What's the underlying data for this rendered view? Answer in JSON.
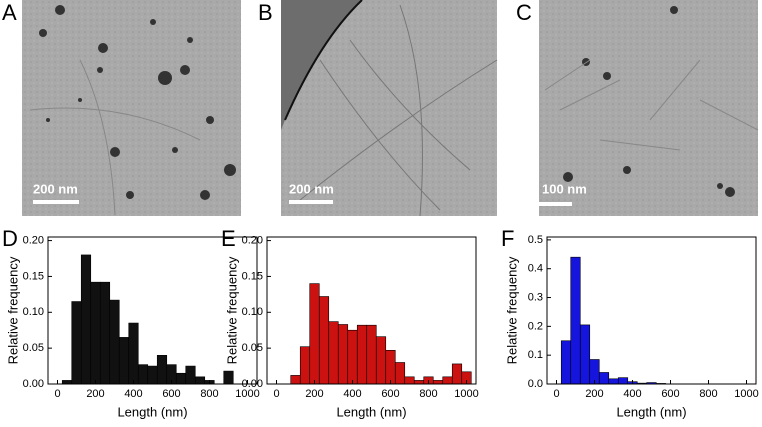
{
  "panels": [
    {
      "label": "A",
      "scale_bar": "200 nm"
    },
    {
      "label": "B",
      "scale_bar": "200 nm"
    },
    {
      "label": "C",
      "scale_bar": "100 nm"
    }
  ],
  "chart_data": [
    {
      "type": "histogram",
      "panel_label": "D",
      "xlabel": "Length (nm)",
      "ylabel": "Relative frequency",
      "color": "#111111",
      "bins": [
        25,
        75,
        125,
        175,
        225,
        275,
        325,
        375,
        425,
        475,
        525,
        575,
        625,
        675,
        725,
        775,
        825,
        875,
        925,
        975
      ],
      "values": [
        0.005,
        0.115,
        0.18,
        0.142,
        0.142,
        0.117,
        0.065,
        0.085,
        0.027,
        0.025,
        0.04,
        0.027,
        0.015,
        0.025,
        0.01,
        0.005,
        0,
        0.018,
        0
      ],
      "xlim": [
        -50,
        1050
      ],
      "ylim": [
        0,
        0.205
      ],
      "xticks": [
        0,
        200,
        400,
        600,
        800,
        1000
      ],
      "yticks": [
        {
          "value": 0,
          "label": "0.00"
        },
        {
          "value": 0.05,
          "label": "0.05"
        },
        {
          "value": 0.1,
          "label": "0.10"
        },
        {
          "value": 0.15,
          "label": "0.15"
        },
        {
          "value": 0.2,
          "label": "0.20"
        }
      ]
    },
    {
      "type": "histogram",
      "panel_label": "E",
      "xlabel": "Length (nm)",
      "ylabel": "Relative frequency",
      "color": "#cc1111",
      "bins": [
        75,
        125,
        175,
        225,
        275,
        325,
        375,
        425,
        475,
        525,
        575,
        625,
        675,
        725,
        775,
        825,
        875,
        925,
        975,
        1025
      ],
      "values": [
        0.012,
        0.052,
        0.14,
        0.122,
        0.087,
        0.083,
        0.075,
        0.082,
        0.082,
        0.066,
        0.047,
        0.03,
        0.01,
        0.005,
        0.01,
        0.005,
        0.01,
        0.028,
        0.017
      ],
      "xlim": [
        -50,
        1050
      ],
      "ylim": [
        0,
        0.205
      ],
      "xticks": [
        0,
        200,
        400,
        600,
        800,
        1000
      ],
      "yticks": [
        {
          "value": 0,
          "label": "0.00"
        },
        {
          "value": 0.05,
          "label": "0.05"
        },
        {
          "value": 0.1,
          "label": "0.10"
        },
        {
          "value": 0.15,
          "label": "0.15"
        },
        {
          "value": 0.2,
          "label": "0.20"
        }
      ]
    },
    {
      "type": "histogram",
      "panel_label": "F",
      "xlabel": "Length (nm)",
      "ylabel": "Relative frequency",
      "color": "#1515dd",
      "bins": [
        25,
        75,
        125,
        175,
        225,
        275,
        325,
        375,
        425,
        475,
        525,
        575
      ],
      "values": [
        0.15,
        0.44,
        0.205,
        0.085,
        0.04,
        0.018,
        0.022,
        0.008,
        0.003,
        0.005,
        0.002
      ],
      "xlim": [
        -50,
        1050
      ],
      "ylim": [
        0,
        0.51
      ],
      "xticks": [
        0,
        200,
        400,
        600,
        800,
        1000
      ],
      "yticks": [
        {
          "value": 0,
          "label": "0.0"
        },
        {
          "value": 0.1,
          "label": "0.1"
        },
        {
          "value": 0.2,
          "label": "0.2"
        },
        {
          "value": 0.3,
          "label": "0.3"
        },
        {
          "value": 0.4,
          "label": "0.4"
        },
        {
          "value": 0.5,
          "label": "0.5"
        }
      ]
    }
  ]
}
